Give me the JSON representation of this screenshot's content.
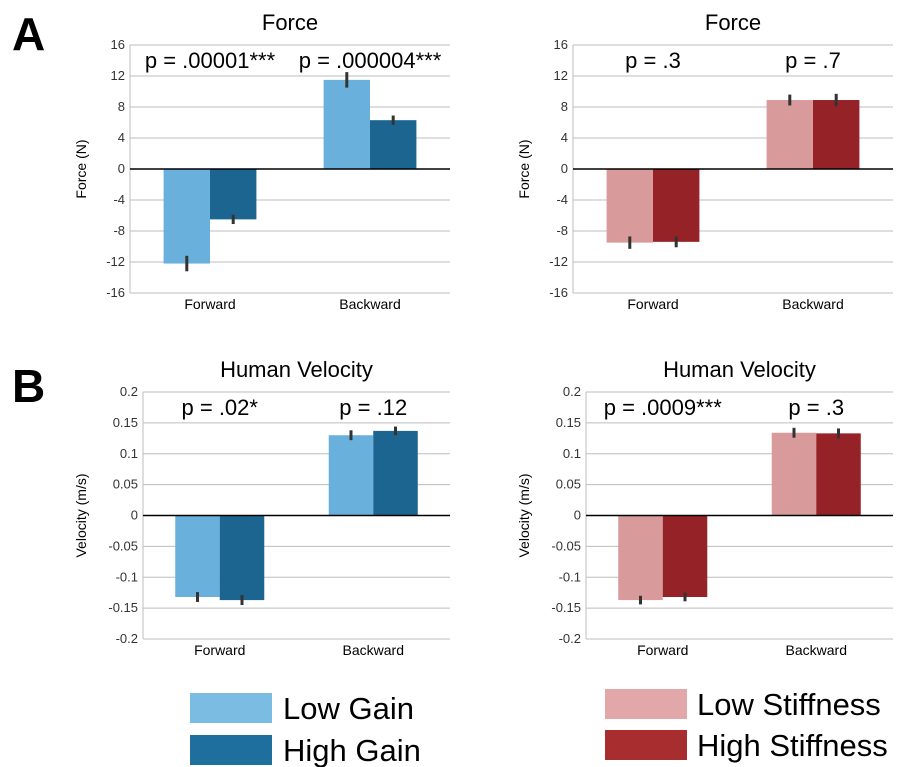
{
  "panel_labels": [
    "A",
    "B"
  ],
  "chart_data": [
    {
      "type": "bar",
      "title": "Force",
      "ylabel": "Force (N)",
      "categories": [
        "Forward",
        "Backward"
      ],
      "ylim": [
        -16,
        16
      ],
      "yticks": [
        "16",
        "12",
        "8",
        "4",
        "0",
        "-4",
        "-8",
        "-12",
        "-16"
      ],
      "grid": true,
      "annotations": [
        "p = .00001***",
        "p = .000004***"
      ],
      "series": [
        {
          "name": "Low Gain",
          "color": "#6ab0dc",
          "values": [
            -12.2,
            11.5
          ],
          "errors": [
            1.0,
            1.0
          ]
        },
        {
          "name": "High Gain",
          "color": "#1d6591",
          "values": [
            -6.5,
            6.3
          ],
          "errors": [
            0.6,
            0.6
          ]
        }
      ]
    },
    {
      "type": "bar",
      "title": "Force",
      "ylabel": "Force (N)",
      "categories": [
        "Forward",
        "Backward"
      ],
      "ylim": [
        -16,
        16
      ],
      "yticks": [
        "16",
        "12",
        "8",
        "4",
        "0",
        "-4",
        "-8",
        "-12",
        "-16"
      ],
      "grid": true,
      "annotations": [
        "p = .3",
        "p = .7"
      ],
      "series": [
        {
          "name": "Low Stiffness",
          "color": "#d99a9c",
          "values": [
            -9.5,
            8.9
          ],
          "errors": [
            0.8,
            0.7
          ]
        },
        {
          "name": "High Stiffness",
          "color": "#952226",
          "values": [
            -9.4,
            8.9
          ],
          "errors": [
            0.7,
            0.8
          ]
        }
      ]
    },
    {
      "type": "bar",
      "title": "Human Velocity",
      "ylabel": "Velocity (m/s)",
      "categories": [
        "Forward",
        "Backward"
      ],
      "ylim": [
        -0.2,
        0.2
      ],
      "yticks": [
        "0.2",
        "0.15",
        "0.1",
        "0.05",
        "0",
        "-0.05",
        "-0.1",
        "-0.15",
        "-0.2"
      ],
      "grid": true,
      "annotations": [
        "p = .02*",
        "p = .12"
      ],
      "series": [
        {
          "name": "Low Gain",
          "color": "#6ab0dc",
          "values": [
            -0.132,
            0.13
          ],
          "errors": [
            0.008,
            0.008
          ]
        },
        {
          "name": "High Gain",
          "color": "#1d6591",
          "values": [
            -0.137,
            0.137
          ],
          "errors": [
            0.008,
            0.007
          ]
        }
      ]
    },
    {
      "type": "bar",
      "title": "Human Velocity",
      "ylabel": "Velocity (m/s)",
      "categories": [
        "Forward",
        "Backward"
      ],
      "ylim": [
        -0.2,
        0.2
      ],
      "yticks": [
        "0.2",
        "0.15",
        "0.1",
        "0.05",
        "0",
        "-0.05",
        "-0.1",
        "-0.15",
        "-0.2"
      ],
      "grid": true,
      "annotations": [
        "p = .0009***",
        "p = .3"
      ],
      "series": [
        {
          "name": "Low Stiffness",
          "color": "#d99a9c",
          "values": [
            -0.137,
            0.134
          ],
          "errors": [
            0.007,
            0.008
          ]
        },
        {
          "name": "High Stiffness",
          "color": "#952226",
          "values": [
            -0.132,
            0.133
          ],
          "errors": [
            0.007,
            0.008
          ]
        }
      ]
    }
  ],
  "legends": [
    {
      "items": [
        {
          "label": "Low Gain",
          "color": "#7bbde2"
        },
        {
          "label": "High Gain",
          "color": "#1f6f9e"
        }
      ]
    },
    {
      "items": [
        {
          "label": "Low Stiffness",
          "color": "#e2a8a9"
        },
        {
          "label": "High Stiffness",
          "color": "#a72d2e"
        }
      ]
    }
  ]
}
